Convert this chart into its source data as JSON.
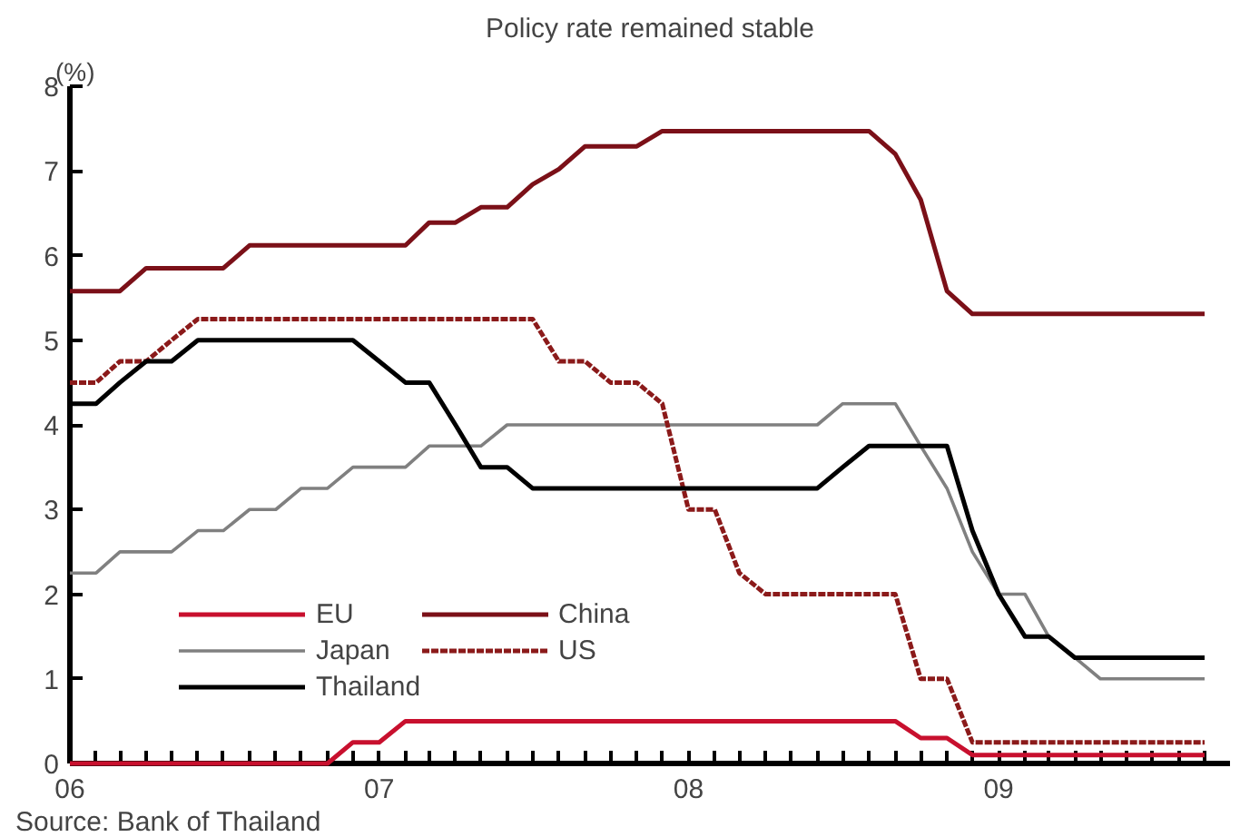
{
  "chart_data": {
    "type": "line",
    "title": "Policy rate remained stable",
    "ylabel": "(%)",
    "x": [
      "2006-01",
      "2006-02",
      "2006-03",
      "2006-04",
      "2006-05",
      "2006-06",
      "2006-07",
      "2006-08",
      "2006-09",
      "2006-10",
      "2006-11",
      "2006-12",
      "2007-01",
      "2007-02",
      "2007-03",
      "2007-04",
      "2007-05",
      "2007-06",
      "2007-07",
      "2007-08",
      "2007-09",
      "2007-10",
      "2007-11",
      "2007-12",
      "2008-01",
      "2008-02",
      "2008-03",
      "2008-04",
      "2008-05",
      "2008-06",
      "2008-07",
      "2008-08",
      "2008-09",
      "2008-10",
      "2008-11",
      "2008-12",
      "2009-01",
      "2009-02",
      "2009-03",
      "2009-04",
      "2009-05",
      "2009-06",
      "2009-07",
      "2009-08",
      "2009-09"
    ],
    "series": [
      {
        "name": "EU",
        "color": "#c8102e",
        "values": [
          0,
          0,
          0,
          0,
          0,
          0,
          0,
          0,
          0,
          0,
          0,
          0.25,
          0.25,
          0.5,
          0.5,
          0.5,
          0.5,
          0.5,
          0.5,
          0.5,
          0.5,
          0.5,
          0.5,
          0.5,
          0.5,
          0.5,
          0.5,
          0.5,
          0.5,
          0.5,
          0.5,
          0.5,
          0.5,
          0.3,
          0.3,
          0.1,
          0.1,
          0.1,
          0.1,
          0.1,
          0.1,
          0.1,
          0.1,
          0.1,
          0.1
        ]
      },
      {
        "name": "China",
        "color": "#7b1018",
        "values": [
          5.58,
          5.58,
          5.58,
          5.85,
          5.85,
          5.85,
          5.85,
          6.12,
          6.12,
          6.12,
          6.12,
          6.12,
          6.12,
          6.12,
          6.39,
          6.39,
          6.57,
          6.57,
          6.84,
          7.02,
          7.29,
          7.29,
          7.29,
          7.47,
          7.47,
          7.47,
          7.47,
          7.47,
          7.47,
          7.47,
          7.47,
          7.47,
          7.2,
          6.66,
          5.58,
          5.31,
          5.31,
          5.31,
          5.31,
          5.31,
          5.31,
          5.31,
          5.31,
          5.31,
          5.31
        ]
      },
      {
        "name": "Japan",
        "color": "#808080",
        "values": [
          2.25,
          2.25,
          2.5,
          2.5,
          2.5,
          2.75,
          2.75,
          3.0,
          3.0,
          3.25,
          3.25,
          3.5,
          3.5,
          3.5,
          3.75,
          3.75,
          3.75,
          4.0,
          4.0,
          4.0,
          4.0,
          4.0,
          4.0,
          4.0,
          4.0,
          4.0,
          4.0,
          4.0,
          4.0,
          4.0,
          4.25,
          4.25,
          4.25,
          3.75,
          3.25,
          2.5,
          2.0,
          2.0,
          1.5,
          1.25,
          1.0,
          1.0,
          1.0,
          1.0,
          1.0
        ]
      },
      {
        "name": "US",
        "color": "#8b1a1a",
        "line_style": "dashed",
        "values": [
          4.5,
          4.5,
          4.75,
          4.75,
          5.0,
          5.25,
          5.25,
          5.25,
          5.25,
          5.25,
          5.25,
          5.25,
          5.25,
          5.25,
          5.25,
          5.25,
          5.25,
          5.25,
          5.25,
          4.75,
          4.75,
          4.5,
          4.5,
          4.25,
          3.0,
          3.0,
          2.25,
          2.0,
          2.0,
          2.0,
          2.0,
          2.0,
          2.0,
          1.0,
          1.0,
          0.25,
          0.25,
          0.25,
          0.25,
          0.25,
          0.25,
          0.25,
          0.25,
          0.25,
          0.25
        ]
      },
      {
        "name": "Thailand",
        "color": "#000000",
        "values": [
          4.25,
          4.25,
          4.5,
          4.75,
          4.75,
          5.0,
          5.0,
          5.0,
          5.0,
          5.0,
          5.0,
          5.0,
          4.75,
          4.5,
          4.5,
          4.0,
          3.5,
          3.5,
          3.25,
          3.25,
          3.25,
          3.25,
          3.25,
          3.25,
          3.25,
          3.25,
          3.25,
          3.25,
          3.25,
          3.25,
          3.5,
          3.75,
          3.75,
          3.75,
          3.75,
          2.75,
          2.0,
          1.5,
          1.5,
          1.25,
          1.25,
          1.25,
          1.25,
          1.25,
          1.25
        ]
      }
    ],
    "xlim": [
      "2006-01",
      "2009-10"
    ],
    "xticks": [
      {
        "value": "2006-01",
        "label": "06"
      },
      {
        "value": "2006-02",
        "label": null
      },
      {
        "value": "2006-03",
        "label": null
      },
      {
        "value": "2006-04",
        "label": null
      },
      {
        "value": "2006-05",
        "label": null
      },
      {
        "value": "2006-06",
        "label": null
      },
      {
        "value": "2006-07",
        "label": null
      },
      {
        "value": "2006-08",
        "label": null
      },
      {
        "value": "2006-09",
        "label": null
      },
      {
        "value": "2006-10",
        "label": null
      },
      {
        "value": "2006-11",
        "label": null
      },
      {
        "value": "2006-12",
        "label": null
      },
      {
        "value": "2007-01",
        "label": "07"
      },
      {
        "value": "2007-02",
        "label": null
      },
      {
        "value": "2007-03",
        "label": null
      },
      {
        "value": "2007-04",
        "label": null
      },
      {
        "value": "2007-05",
        "label": null
      },
      {
        "value": "2007-06",
        "label": null
      },
      {
        "value": "2007-07",
        "label": null
      },
      {
        "value": "2007-08",
        "label": null
      },
      {
        "value": "2007-09",
        "label": null
      },
      {
        "value": "2007-10",
        "label": null
      },
      {
        "value": "2007-11",
        "label": null
      },
      {
        "value": "2007-12",
        "label": null
      },
      {
        "value": "2008-01",
        "label": "08"
      },
      {
        "value": "2008-02",
        "label": null
      },
      {
        "value": "2008-03",
        "label": null
      },
      {
        "value": "2008-04",
        "label": null
      },
      {
        "value": "2008-05",
        "label": null
      },
      {
        "value": "2008-06",
        "label": null
      },
      {
        "value": "2008-07",
        "label": null
      },
      {
        "value": "2008-08",
        "label": null
      },
      {
        "value": "2008-09",
        "label": null
      },
      {
        "value": "2008-10",
        "label": null
      },
      {
        "value": "2008-11",
        "label": null
      },
      {
        "value": "2008-12",
        "label": null
      },
      {
        "value": "2009-01",
        "label": "09"
      },
      {
        "value": "2009-02",
        "label": null
      },
      {
        "value": "2009-03",
        "label": null
      },
      {
        "value": "2009-04",
        "label": null
      },
      {
        "value": "2009-05",
        "label": null
      },
      {
        "value": "2009-06",
        "label": null
      },
      {
        "value": "2009-07",
        "label": null
      },
      {
        "value": "2009-08",
        "label": null
      },
      {
        "value": "2009-09",
        "label": null
      }
    ],
    "ylim": [
      0,
      8
    ],
    "yticks": [
      0,
      1,
      2,
      3,
      4,
      5,
      6,
      7,
      8
    ],
    "grid": false,
    "legend": "bottom left",
    "line_style": "solid",
    "marker": "none",
    "annotations": [
      "Source: Bank of Thailand"
    ]
  }
}
